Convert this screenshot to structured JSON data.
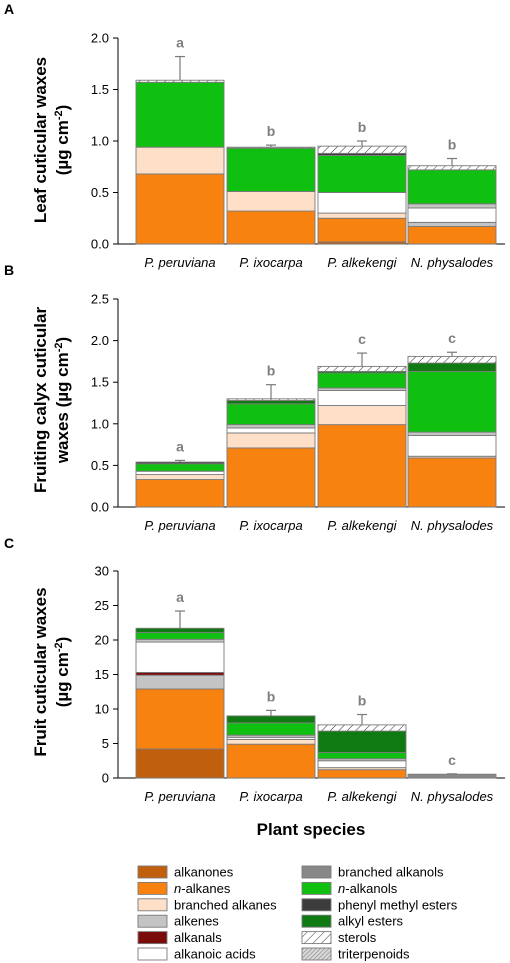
{
  "xlabel": "Plant species",
  "categories": [
    "P. peruviana",
    "P. ixocarpa",
    "P. alkekengi",
    "N. physalodes"
  ],
  "legend": [
    {
      "name": "alkanones",
      "color": "#c0600c",
      "pattern": "solid"
    },
    {
      "name": "n-alkanes",
      "italic_prefix": "n",
      "color": "#f88210",
      "pattern": "solid"
    },
    {
      "name": "branched alkanes",
      "color": "#fde0c7",
      "pattern": "solid"
    },
    {
      "name": "alkenes",
      "color": "#c4c4c4",
      "pattern": "solid"
    },
    {
      "name": "alkanals",
      "color": "#7b0c0c",
      "pattern": "solid"
    },
    {
      "name": "alkanoic acids",
      "color": "#ffffff",
      "pattern": "solid"
    },
    {
      "name": "branched alkanols",
      "color": "#888888",
      "pattern": "solid"
    },
    {
      "name": "n-alkanols",
      "italic_prefix": "n",
      "color": "#10c010",
      "pattern": "solid"
    },
    {
      "name": "phenyl methyl esters",
      "color": "#3c3c3c",
      "pattern": "solid"
    },
    {
      "name": "alkyl esters",
      "color": "#0f7a12",
      "pattern": "solid"
    },
    {
      "name": "sterols",
      "color": "#ffffff",
      "pattern": "hatch-sparse"
    },
    {
      "name": "triterpenoids",
      "color": "#d8d8d8",
      "pattern": "hatch-dense"
    }
  ],
  "chart_data": [
    {
      "type": "bar",
      "stacked": true,
      "panel_letter": "A",
      "ylabel_line1": "Leaf cuticular waxes",
      "ylabel_line2": "(µg cm",
      "ylabel_sup": "-2",
      "ylabel_close": ")",
      "ylim": [
        0,
        2.0
      ],
      "yticks": [
        "0.0",
        "0.5",
        "1.0",
        "1.5",
        "2.0"
      ],
      "ytick_values": [
        0,
        0.5,
        1.0,
        1.5,
        2.0
      ],
      "categories": [
        "P. peruviana",
        "P. ixocarpa",
        "P. alkekengi",
        "N. physalodes"
      ],
      "significance": [
        "a",
        "b",
        "b",
        "b"
      ],
      "error_top": [
        1.82,
        0.96,
        1.0,
        0.83
      ],
      "stacks": [
        [
          {
            "class": "n-alkanes",
            "value": 0.68
          },
          {
            "class": "branched alkanes",
            "value": 0.26
          },
          {
            "class": "n-alkanols",
            "value": 0.63
          },
          {
            "class": "sterols",
            "value": 0.02
          }
        ],
        [
          {
            "class": "n-alkanes",
            "value": 0.32
          },
          {
            "class": "branched alkanes",
            "value": 0.19
          },
          {
            "class": "n-alkanols",
            "value": 0.42
          },
          {
            "class": "sterols",
            "value": 0.01
          }
        ],
        [
          {
            "class": "alkanones",
            "value": 0.02
          },
          {
            "class": "n-alkanes",
            "value": 0.23
          },
          {
            "class": "branched alkanes",
            "value": 0.05
          },
          {
            "class": "alkanoic acids",
            "value": 0.2
          },
          {
            "class": "n-alkanols",
            "value": 0.36
          },
          {
            "class": "phenyl methyl esters",
            "value": 0.02
          },
          {
            "class": "sterols",
            "value": 0.07
          }
        ],
        [
          {
            "class": "n-alkanes",
            "value": 0.17
          },
          {
            "class": "alkenes",
            "value": 0.04
          },
          {
            "class": "alkanoic acids",
            "value": 0.14
          },
          {
            "class": "alkenes",
            "value": 0.04
          },
          {
            "class": "n-alkanols",
            "value": 0.33
          },
          {
            "class": "sterols",
            "value": 0.04
          }
        ]
      ]
    },
    {
      "type": "bar",
      "stacked": true,
      "panel_letter": "B",
      "ylabel_line1": "Fruiting calyx cuticular",
      "ylabel_line2": "waxes (µg cm",
      "ylabel_sup": "-2",
      "ylabel_close": ")",
      "ylim": [
        0,
        2.5
      ],
      "yticks": [
        "0.0",
        "0.5",
        "1.0",
        "1.5",
        "2.0",
        "2.5"
      ],
      "ytick_values": [
        0,
        0.5,
        1.0,
        1.5,
        2.0,
        2.5
      ],
      "categories": [
        "P. peruviana",
        "P. ixocarpa",
        "P. alkekengi",
        "N. physalodes"
      ],
      "significance": [
        "a",
        "b",
        "c",
        "c"
      ],
      "error_top": [
        0.56,
        1.47,
        1.85,
        1.86
      ],
      "stacks": [
        [
          {
            "class": "n-alkanes",
            "value": 0.33
          },
          {
            "class": "branched alkanes",
            "value": 0.06
          },
          {
            "class": "alkanoic acids",
            "value": 0.04
          },
          {
            "class": "n-alkanols",
            "value": 0.09
          },
          {
            "class": "phenyl methyl esters",
            "value": 0.02
          }
        ],
        [
          {
            "class": "n-alkanes",
            "value": 0.71
          },
          {
            "class": "branched alkanes",
            "value": 0.18
          },
          {
            "class": "alkanoic acids",
            "value": 0.06
          },
          {
            "class": "alkenes",
            "value": 0.04
          },
          {
            "class": "n-alkanols",
            "value": 0.25
          },
          {
            "class": "alkyl esters",
            "value": 0.04
          },
          {
            "class": "sterols",
            "value": 0.02
          }
        ],
        [
          {
            "class": "n-alkanes",
            "value": 0.99
          },
          {
            "class": "branched alkanes",
            "value": 0.23
          },
          {
            "class": "alkanoic acids",
            "value": 0.18
          },
          {
            "class": "alkenes",
            "value": 0.03
          },
          {
            "class": "n-alkanols",
            "value": 0.18
          },
          {
            "class": "alkyl esters",
            "value": 0.02
          },
          {
            "class": "sterols",
            "value": 0.06
          }
        ],
        [
          {
            "class": "n-alkanes",
            "value": 0.59
          },
          {
            "class": "branched alkanes",
            "value": 0.02
          },
          {
            "class": "alkanoic acids",
            "value": 0.25
          },
          {
            "class": "alkenes",
            "value": 0.04
          },
          {
            "class": "n-alkanols",
            "value": 0.73
          },
          {
            "class": "alkyl esters",
            "value": 0.1
          },
          {
            "class": "sterols",
            "value": 0.08
          }
        ]
      ]
    },
    {
      "type": "bar",
      "stacked": true,
      "panel_letter": "C",
      "ylabel_line1": "Fruit cuticular waxes",
      "ylabel_line2": "(µg cm",
      "ylabel_sup": "-2",
      "ylabel_close": ")",
      "ylim": [
        0,
        30
      ],
      "yticks": [
        "0",
        "5",
        "10",
        "15",
        "20",
        "25",
        "30"
      ],
      "ytick_values": [
        0,
        5,
        10,
        15,
        20,
        25,
        30
      ],
      "categories": [
        "P. peruviana",
        "P. ixocarpa",
        "P. alkekengi",
        "N. physalodes"
      ],
      "significance": [
        "a",
        "b",
        "b",
        "c"
      ],
      "error_top": [
        24.2,
        9.8,
        9.2,
        0.6
      ],
      "stacks": [
        [
          {
            "class": "alkanones",
            "value": 4.2
          },
          {
            "class": "n-alkanes",
            "value": 8.7
          },
          {
            "class": "alkenes",
            "value": 2.0
          },
          {
            "class": "alkanals",
            "value": 0.4
          },
          {
            "class": "alkanoic acids",
            "value": 4.4
          },
          {
            "class": "alkenes",
            "value": 0.4
          },
          {
            "class": "n-alkanols",
            "value": 1.0
          },
          {
            "class": "alkyl esters",
            "value": 0.6
          }
        ],
        [
          {
            "class": "n-alkanes",
            "value": 4.9
          },
          {
            "class": "branched alkanes",
            "value": 0.7
          },
          {
            "class": "alkanoic acids",
            "value": 0.3
          },
          {
            "class": "alkenes",
            "value": 0.3
          },
          {
            "class": "n-alkanols",
            "value": 1.8
          },
          {
            "class": "alkyl esters",
            "value": 1.0
          }
        ],
        [
          {
            "class": "n-alkanes",
            "value": 1.2
          },
          {
            "class": "branched alkanes",
            "value": 0.3
          },
          {
            "class": "alkanoic acids",
            "value": 1.0
          },
          {
            "class": "alkenes",
            "value": 0.3
          },
          {
            "class": "n-alkanols",
            "value": 0.9
          },
          {
            "class": "alkyl esters",
            "value": 3.1
          },
          {
            "class": "sterols",
            "value": 0.9
          }
        ],
        [
          {
            "class": "branched alkanols",
            "value": 0.55
          }
        ]
      ]
    }
  ]
}
